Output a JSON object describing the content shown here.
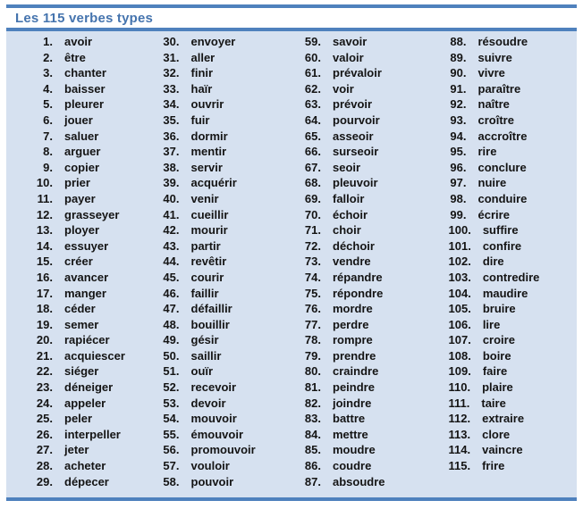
{
  "title": "Les 115 verbes types",
  "colors": {
    "accent": "#4f81bd",
    "title_text": "#4574ae",
    "content_bg": "#d6e1f0",
    "verb_text": "#141414",
    "page_bg": "#ffffff"
  },
  "verb_list": {
    "columns": [
      [
        {
          "num": "1.",
          "verb": "avoir"
        },
        {
          "num": "2.",
          "verb": "être"
        },
        {
          "num": "3.",
          "verb": "chanter"
        },
        {
          "num": "4.",
          "verb": "baisser"
        },
        {
          "num": "5.",
          "verb": "pleurer"
        },
        {
          "num": "6.",
          "verb": "jouer"
        },
        {
          "num": "7.",
          "verb": "saluer"
        },
        {
          "num": "8.",
          "verb": "arguer"
        },
        {
          "num": "9.",
          "verb": "copier"
        },
        {
          "num": "10.",
          "verb": "prier"
        },
        {
          "num": "11.",
          "verb": "payer"
        },
        {
          "num": "12.",
          "verb": "grasseyer"
        },
        {
          "num": "13.",
          "verb": "ployer"
        },
        {
          "num": "14.",
          "verb": "essuyer"
        },
        {
          "num": "15.",
          "verb": "créer"
        },
        {
          "num": "16.",
          "verb": "avancer"
        },
        {
          "num": "17.",
          "verb": "manger"
        },
        {
          "num": "18.",
          "verb": "céder"
        },
        {
          "num": "19.",
          "verb": "semer"
        },
        {
          "num": "20.",
          "verb": "rapiécer"
        },
        {
          "num": "21.",
          "verb": "acquiescer"
        },
        {
          "num": "22.",
          "verb": "siéger"
        },
        {
          "num": "23.",
          "verb": "déneiger"
        },
        {
          "num": "24.",
          "verb": "appeler"
        },
        {
          "num": "25.",
          "verb": "peler"
        },
        {
          "num": "26.",
          "verb": "interpeller"
        },
        {
          "num": "27.",
          "verb": "jeter"
        },
        {
          "num": "28.",
          "verb": "acheter"
        },
        {
          "num": "29.",
          "verb": "dépecer"
        }
      ],
      [
        {
          "num": "30.",
          "verb": "envoyer"
        },
        {
          "num": "31.",
          "verb": "aller"
        },
        {
          "num": "32.",
          "verb": "finir"
        },
        {
          "num": "33.",
          "verb": "haïr"
        },
        {
          "num": "34.",
          "verb": "ouvrir"
        },
        {
          "num": "35.",
          "verb": "fuir"
        },
        {
          "num": "36.",
          "verb": "dormir"
        },
        {
          "num": "37.",
          "verb": "mentir"
        },
        {
          "num": "38.",
          "verb": "servir"
        },
        {
          "num": "39.",
          "verb": "acquérir"
        },
        {
          "num": "40.",
          "verb": "venir"
        },
        {
          "num": "41.",
          "verb": "cueillir"
        },
        {
          "num": "42.",
          "verb": "mourir"
        },
        {
          "num": "43.",
          "verb": "partir"
        },
        {
          "num": "44.",
          "verb": "revêtir"
        },
        {
          "num": "45.",
          "verb": "courir"
        },
        {
          "num": "46.",
          "verb": "faillir"
        },
        {
          "num": "47.",
          "verb": "défaillir"
        },
        {
          "num": "48.",
          "verb": "bouillir"
        },
        {
          "num": "49.",
          "verb": "gésir"
        },
        {
          "num": "50.",
          "verb": "saillir"
        },
        {
          "num": "51.",
          "verb": "ouïr"
        },
        {
          "num": "52.",
          "verb": "recevoir"
        },
        {
          "num": "53.",
          "verb": "devoir"
        },
        {
          "num": "54.",
          "verb": "mouvoir"
        },
        {
          "num": "55.",
          "verb": "émouvoir"
        },
        {
          "num": "56.",
          "verb": "promouvoir"
        },
        {
          "num": "57.",
          "verb": "vouloir"
        },
        {
          "num": "58.",
          "verb": "pouvoir"
        }
      ],
      [
        {
          "num": "59.",
          "verb": "savoir"
        },
        {
          "num": "60.",
          "verb": "valoir"
        },
        {
          "num": "61.",
          "verb": "prévaloir"
        },
        {
          "num": "62.",
          "verb": "voir"
        },
        {
          "num": "63.",
          "verb": "prévoir"
        },
        {
          "num": "64.",
          "verb": "pourvoir"
        },
        {
          "num": "65.",
          "verb": "asseoir"
        },
        {
          "num": "66.",
          "verb": "surseoir"
        },
        {
          "num": "67.",
          "verb": "seoir"
        },
        {
          "num": "68.",
          "verb": "pleuvoir"
        },
        {
          "num": "69.",
          "verb": "falloir"
        },
        {
          "num": "70.",
          "verb": "échoir"
        },
        {
          "num": "71.",
          "verb": "choir"
        },
        {
          "num": "72.",
          "verb": "déchoir"
        },
        {
          "num": "73.",
          "verb": "vendre"
        },
        {
          "num": "74.",
          "verb": "répandre"
        },
        {
          "num": "75.",
          "verb": "répondre"
        },
        {
          "num": "76.",
          "verb": "mordre"
        },
        {
          "num": "77.",
          "verb": "perdre"
        },
        {
          "num": "78.",
          "verb": "rompre"
        },
        {
          "num": "79.",
          "verb": "prendre"
        },
        {
          "num": "80.",
          "verb": "craindre"
        },
        {
          "num": "81.",
          "verb": "peindre"
        },
        {
          "num": "82.",
          "verb": "joindre"
        },
        {
          "num": "83.",
          "verb": "battre"
        },
        {
          "num": "84.",
          "verb": "mettre"
        },
        {
          "num": "85.",
          "verb": "moudre"
        },
        {
          "num": "86.",
          "verb": "coudre"
        },
        {
          "num": "87.",
          "verb": "absoudre"
        }
      ],
      [
        {
          "num": "88.",
          "verb": "résoudre"
        },
        {
          "num": "89.",
          "verb": "suivre"
        },
        {
          "num": "90.",
          "verb": "vivre"
        },
        {
          "num": "91.",
          "verb": "paraître"
        },
        {
          "num": "92.",
          "verb": "naître"
        },
        {
          "num": "93.",
          "verb": "croître"
        },
        {
          "num": "94.",
          "verb": "accroître"
        },
        {
          "num": "95.",
          "verb": "rire"
        },
        {
          "num": "96.",
          "verb": "conclure"
        },
        {
          "num": "97.",
          "verb": "nuire"
        },
        {
          "num": "98.",
          "verb": "conduire"
        },
        {
          "num": "99.",
          "verb": "écrire"
        },
        {
          "num": "100.",
          "verb": "suffire"
        },
        {
          "num": "101.",
          "verb": "confire"
        },
        {
          "num": "102.",
          "verb": "dire"
        },
        {
          "num": "103.",
          "verb": "contredire"
        },
        {
          "num": "104.",
          "verb": "maudire"
        },
        {
          "num": "105.",
          "verb": "bruire"
        },
        {
          "num": "106.",
          "verb": "lire"
        },
        {
          "num": "107.",
          "verb": "croire"
        },
        {
          "num": "108.",
          "verb": "boire"
        },
        {
          "num": "109.",
          "verb": "faire"
        },
        {
          "num": "110.",
          "verb": "plaire"
        },
        {
          "num": "111.",
          "verb": "taire"
        },
        {
          "num": "112.",
          "verb": "extraire"
        },
        {
          "num": "113.",
          "verb": "clore"
        },
        {
          "num": "114.",
          "verb": "vaincre"
        },
        {
          "num": "115.",
          "verb": "frire"
        }
      ]
    ]
  }
}
